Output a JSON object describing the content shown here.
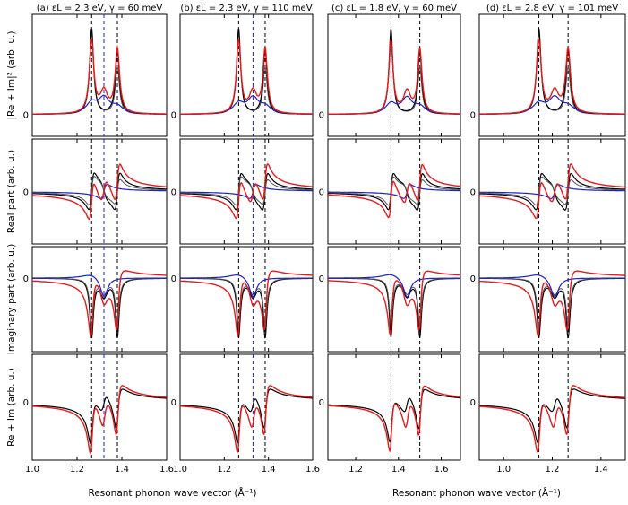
{
  "chart_data": {
    "type": "line",
    "columns": [
      {
        "title": "(a) εL = 2.3 eV, γ = 60 meV",
        "xlim": [
          1.0,
          1.6
        ],
        "peaks": [
          1.265,
          1.32,
          1.38
        ],
        "vlines": [
          {
            "x": 1.265,
            "color": "black"
          },
          {
            "x": 1.32,
            "color": "blue"
          },
          {
            "x": 1.38,
            "color": "black"
          }
        ]
      },
      {
        "title": "(b) εL = 2.3 eV, γ = 110 meV",
        "xlim": [
          1.0,
          1.6
        ],
        "peaks": [
          1.265,
          1.33,
          1.385
        ],
        "vlines": [
          {
            "x": 1.265,
            "color": "black"
          },
          {
            "x": 1.33,
            "color": "blue"
          },
          {
            "x": 1.385,
            "color": "black"
          }
        ]
      },
      {
        "title": "(c) εL = 1.8 eV, γ = 60 meV",
        "xlim": [
          1.07,
          1.69
        ],
        "peaks": [
          1.365,
          1.44,
          1.5
        ],
        "vlines": [
          {
            "x": 1.365,
            "color": "black"
          },
          {
            "x": 1.5,
            "color": "black"
          }
        ]
      },
      {
        "title": "(d) εL = 2.8 eV, γ = 101 meV",
        "xlim": [
          0.9,
          1.5
        ],
        "peaks": [
          1.145,
          1.21,
          1.265
        ],
        "vlines": [
          {
            "x": 1.145,
            "color": "black"
          },
          {
            "x": 1.265,
            "color": "black"
          }
        ]
      }
    ],
    "row_labels": [
      "|Re + Im|² (arb. u.)",
      "Real part (arb. u.)",
      "Imaginary part (arb. u.)",
      "Re + Im (arb. u.)"
    ],
    "zero_tick_label": "0",
    "x_tick_labels": [
      [
        "1.0",
        "1.2",
        "1.4",
        "1.6"
      ],
      [
        "1.0",
        "1.2",
        "1.4",
        "1.6"
      ],
      [
        "1.2",
        "1.4",
        "1.6"
      ],
      [
        "1.0",
        "1.2",
        "1.4"
      ]
    ],
    "x_tick_values": [
      [
        1.0,
        1.2,
        1.4,
        1.6
      ],
      [
        1.0,
        1.2,
        1.4,
        1.6
      ],
      [
        1.2,
        1.4,
        1.6
      ],
      [
        1.0,
        1.2,
        1.4
      ]
    ],
    "xlabel": "Resonant phonon wave vector (Å⁻¹)",
    "series": [
      {
        "color": "#e8191b"
      },
      {
        "color": "#000000"
      },
      {
        "color": "#1a22cc"
      },
      {
        "color": "#555555"
      }
    ]
  }
}
